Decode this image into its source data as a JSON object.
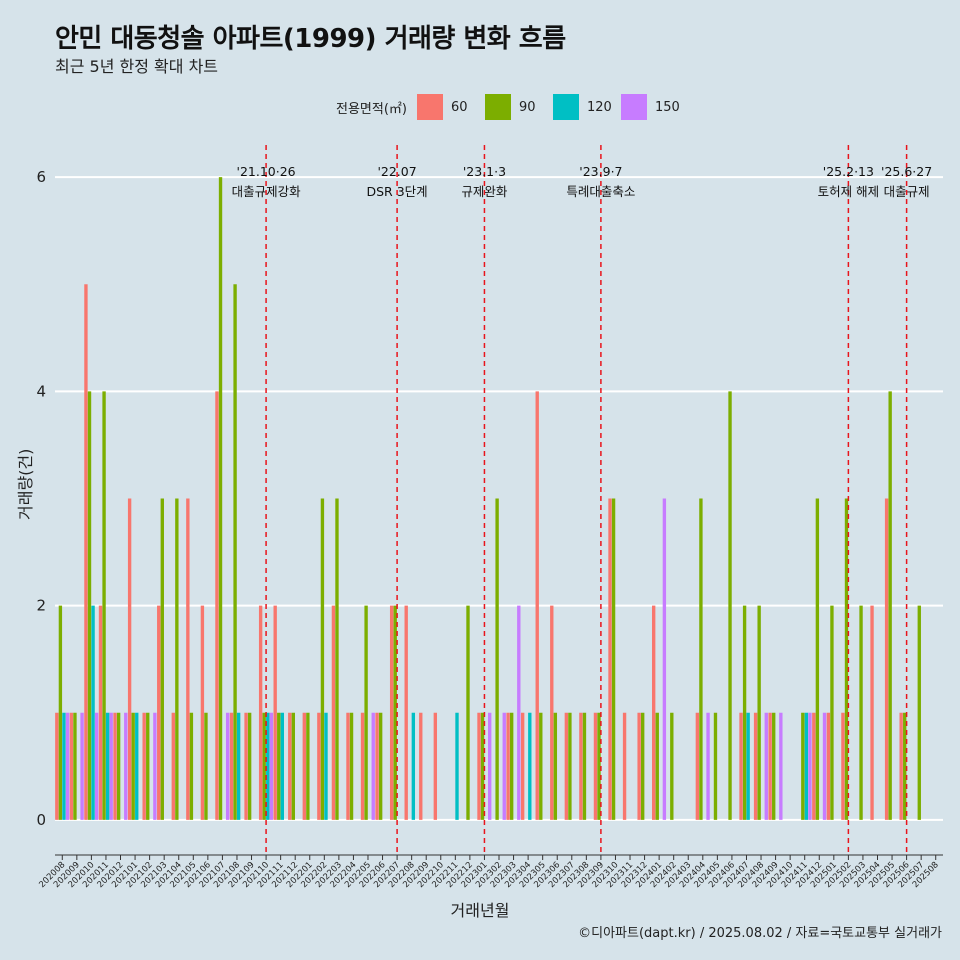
{
  "title": "안민 대동청솔 아파트(1999) 거래량 변화 흐름",
  "subtitle": "최근 5년 한정 확대 차트",
  "credit": "©디아파트(dapt.kr) / 2025.08.02 / 자료=국토교통부 실거래가",
  "legend_title": "전용면적(㎡)",
  "colors": {
    "60": "#f8766d",
    "90": "#7cae00",
    "120": "#00bfc4",
    "150": "#c77cff",
    "background": "#d6e3ea",
    "grid": "#ffffff",
    "event_line": "#e8141c"
  },
  "chart_data": {
    "type": "bar",
    "xlabel": "거래년월",
    "ylabel": "거래량(건)",
    "ylim": [
      -0.3,
      6.3
    ],
    "yticks": [
      0,
      2,
      4,
      6
    ],
    "legend_position": "top",
    "categories": [
      "202008",
      "202009",
      "202010",
      "202011",
      "202012",
      "202101",
      "202102",
      "202103",
      "202104",
      "202105",
      "202106",
      "202107",
      "202108",
      "202109",
      "202110",
      "202111",
      "202112",
      "202201",
      "202202",
      "202203",
      "202204",
      "202205",
      "202206",
      "202207",
      "202208",
      "202209",
      "202210",
      "202211",
      "202212",
      "202301",
      "202302",
      "202303",
      "202304",
      "202305",
      "202306",
      "202307",
      "202308",
      "202309",
      "202310",
      "202311",
      "202312",
      "202401",
      "202402",
      "202403",
      "202404",
      "202405",
      "202406",
      "202407",
      "202408",
      "202409",
      "202410",
      "202411",
      "202412",
      "202501",
      "202502",
      "202503",
      "202504",
      "202505",
      "202506",
      "202507",
      "202508"
    ],
    "series": [
      {
        "name": "60",
        "values": [
          1,
          1,
          5,
          2,
          1,
          3,
          1,
          2,
          1,
          3,
          2,
          4,
          1,
          1,
          2,
          2,
          1,
          1,
          1,
          2,
          1,
          1,
          1,
          2,
          2,
          1,
          1,
          0,
          0,
          1,
          0,
          1,
          1,
          4,
          2,
          1,
          1,
          1,
          3,
          1,
          1,
          2,
          0,
          0,
          1,
          0,
          0,
          1,
          1,
          1,
          0,
          0,
          1,
          1,
          1,
          0,
          2,
          3,
          1,
          0,
          0
        ]
      },
      {
        "name": "90",
        "values": [
          2,
          1,
          4,
          4,
          1,
          1,
          1,
          3,
          3,
          1,
          1,
          6,
          5,
          1,
          1,
          1,
          1,
          1,
          3,
          3,
          1,
          2,
          1,
          2,
          0,
          0,
          0,
          0,
          2,
          1,
          3,
          1,
          0,
          1,
          1,
          1,
          1,
          1,
          3,
          0,
          1,
          1,
          1,
          0,
          3,
          1,
          4,
          2,
          2,
          1,
          0,
          1,
          3,
          2,
          3,
          2,
          0,
          4,
          1,
          2,
          0
        ]
      },
      {
        "name": "120",
        "values": [
          1,
          0,
          2,
          1,
          0,
          1,
          0,
          0,
          0,
          0,
          0,
          0,
          1,
          0,
          1,
          1,
          0,
          0,
          1,
          0,
          0,
          0,
          0,
          0,
          1,
          0,
          0,
          1,
          0,
          0,
          0,
          0,
          1,
          0,
          0,
          0,
          0,
          0,
          0,
          0,
          0,
          0,
          0,
          0,
          0,
          0,
          0,
          1,
          0,
          0,
          0,
          1,
          0,
          0,
          0,
          0,
          0,
          0,
          0,
          0,
          0
        ]
      },
      {
        "name": "150",
        "values": [
          1,
          1,
          1,
          1,
          1,
          0,
          1,
          0,
          0,
          0,
          0,
          1,
          0,
          0,
          1,
          0,
          0,
          0,
          0,
          0,
          0,
          1,
          0,
          0,
          0,
          0,
          0,
          0,
          0,
          1,
          1,
          2,
          0,
          0,
          0,
          0,
          0,
          0,
          0,
          0,
          0,
          3,
          0,
          0,
          1,
          0,
          0,
          0,
          1,
          1,
          0,
          1,
          1,
          0,
          0,
          0,
          0,
          0,
          0,
          0,
          0
        ]
      }
    ],
    "events": [
      {
        "x": "202110",
        "label": [
          "'21.10·26",
          "대출규제강화"
        ]
      },
      {
        "x": "202207",
        "label": [
          "'22.07",
          "DSR 3단계"
        ]
      },
      {
        "x": "202301",
        "label": [
          "'23.1·3",
          "규제완화"
        ]
      },
      {
        "x": "202309",
        "label": [
          "'23.9·7",
          "특례대출축소"
        ]
      },
      {
        "x": "202502",
        "label": [
          "'25.2·13",
          "토허제 해제"
        ]
      },
      {
        "x": "202506",
        "label": [
          "'25.6·27",
          "대출규제"
        ]
      }
    ]
  }
}
